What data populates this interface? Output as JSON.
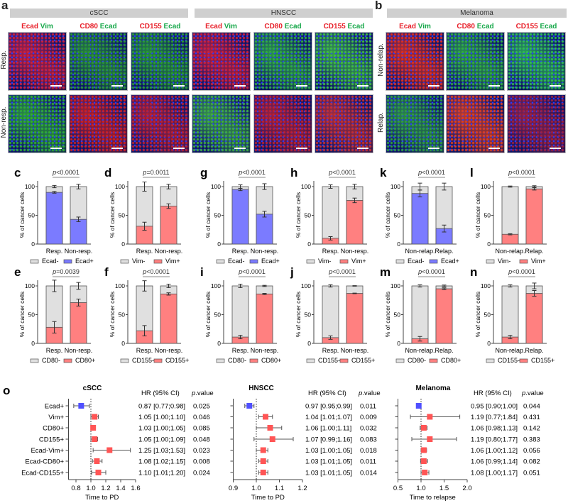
{
  "panel_a": {
    "letter": "a",
    "groups": [
      "cSCC",
      "HNSCC"
    ],
    "row_labels": [
      "Resp.",
      "Non-resp."
    ]
  },
  "panel_b": {
    "letter": "b",
    "group": "Melanoma",
    "row_labels": [
      "Non-relap.",
      "Relap."
    ]
  },
  "stains": [
    {
      "red": "Ecad",
      "green": "Vim"
    },
    {
      "red": "CD80",
      "green": "Ecad"
    },
    {
      "red": "CD155",
      "green": "Ecad"
    }
  ],
  "image_tones": [
    [
      "#d0203a",
      "#2a9a30",
      "#2aa030",
      "#d0203a",
      "#30b040",
      "#40c040",
      "#e03020",
      "#30b040",
      "#30c050"
    ],
    [
      "#30b030",
      "#d02020",
      "#c02030",
      "#40b040",
      "#c02030",
      "#c83030",
      "#30a040",
      "#e04020",
      "#a02040"
    ]
  ],
  "colors": {
    "ecad_pos": "#7b7bff",
    "marker_pos": "#ff8080",
    "neg": "#e0e0e0",
    "hr_low": "#5050ff",
    "hr_high": "#ff5555"
  },
  "p_symbol": "p",
  "y_label": "% of cancer cells",
  "y_ticks": [
    "0",
    "50",
    "100"
  ],
  "chart_data": [
    {
      "type": "bar",
      "stacked": true,
      "letter": "c",
      "p": "<0.0001",
      "categories": [
        "Resp.",
        "Non-resp."
      ],
      "legend": [
        "Ecad-",
        "Ecad+"
      ],
      "pos_color": "#7b7bff",
      "pos": [
        90,
        43
      ],
      "pos_err": [
        1.5,
        4
      ],
      "neg_err": [
        2,
        4
      ],
      "ylim": [
        0,
        100
      ]
    },
    {
      "type": "bar",
      "stacked": true,
      "letter": "d",
      "p": "=0.0011",
      "categories": [
        "Resp.",
        "Non-resp."
      ],
      "legend": [
        "Vim-",
        "Vim+"
      ],
      "pos_color": "#ff8080",
      "pos": [
        31,
        66
      ],
      "pos_err": [
        7,
        4
      ],
      "neg_err": [
        8,
        4
      ],
      "ylim": [
        0,
        100
      ]
    },
    {
      "type": "bar",
      "stacked": true,
      "letter": "g",
      "p": "<0.0001",
      "categories": [
        "Resp.",
        "Non-resp."
      ],
      "legend": [
        "Ecad-",
        "Ecad+"
      ],
      "pos_color": "#7b7bff",
      "pos": [
        95,
        52
      ],
      "pos_err": [
        2,
        5
      ],
      "neg_err": [
        3,
        5
      ],
      "ylim": [
        0,
        100
      ]
    },
    {
      "type": "bar",
      "stacked": true,
      "letter": "h",
      "p": "<0.0001",
      "categories": [
        "Resp.",
        "Non-resp."
      ],
      "legend": [
        "Vim-",
        "Vim+"
      ],
      "pos_color": "#ff8080",
      "pos": [
        10,
        76
      ],
      "pos_err": [
        3,
        4
      ],
      "neg_err": [
        3,
        4
      ],
      "ylim": [
        0,
        100
      ]
    },
    {
      "type": "bar",
      "stacked": true,
      "letter": "k",
      "p": "<0.0001",
      "categories": [
        "Non-relap.",
        "Relap."
      ],
      "legend": [
        "Ecad-",
        "Ecad+"
      ],
      "pos_color": "#7b7bff",
      "pos": [
        88,
        27
      ],
      "pos_err": [
        6,
        6
      ],
      "neg_err": [
        6,
        6
      ],
      "ylim": [
        0,
        100
      ]
    },
    {
      "type": "bar",
      "stacked": true,
      "letter": "l",
      "p": "<0.0001",
      "categories": [
        "Non-relap.",
        "Relap."
      ],
      "legend": [
        "Vim-",
        "Vim+"
      ],
      "pos_color": "#ff8080",
      "pos": [
        17,
        96
      ],
      "pos_err": [
        1,
        2
      ],
      "neg_err": [
        1,
        1.5
      ],
      "ylim": [
        0,
        100
      ]
    },
    {
      "type": "bar",
      "stacked": true,
      "letter": "e",
      "p": "=0.0039",
      "categories": [
        "Resp.",
        "Non-resp."
      ],
      "legend": [
        "CD80-",
        "CD80+"
      ],
      "pos_color": "#ff8080",
      "pos": [
        28,
        71
      ],
      "pos_err": [
        10,
        6
      ],
      "neg_err": [
        10,
        6
      ],
      "ylim": [
        0,
        100
      ]
    },
    {
      "type": "bar",
      "stacked": true,
      "letter": "f",
      "p": "<0.0001",
      "categories": [
        "Resp.",
        "Non-resp."
      ],
      "legend": [
        "CD155-",
        "CD155+"
      ],
      "pos_color": "#ff8080",
      "pos": [
        22,
        86
      ],
      "pos_err": [
        9,
        2
      ],
      "neg_err": [
        9,
        3
      ],
      "ylim": [
        0,
        100
      ]
    },
    {
      "type": "bar",
      "stacked": true,
      "letter": "i",
      "p": "<0.0001",
      "categories": [
        "Resp.",
        "Non-resp."
      ],
      "legend": [
        "CD80-",
        "CD80+"
      ],
      "pos_color": "#ff8080",
      "pos": [
        11,
        86
      ],
      "pos_err": [
        3,
        1
      ],
      "neg_err": [
        3,
        1
      ],
      "ylim": [
        0,
        100
      ]
    },
    {
      "type": "bar",
      "stacked": true,
      "letter": "j",
      "p": "<0.0001",
      "categories": [
        "Resp.",
        "Non-resp."
      ],
      "legend": [
        "CD155-",
        "CD155+"
      ],
      "pos_color": "#ff8080",
      "pos": [
        10,
        87
      ],
      "pos_err": [
        3,
        0.5
      ],
      "neg_err": [
        2,
        0.5
      ],
      "ylim": [
        0,
        100
      ]
    },
    {
      "type": "bar",
      "stacked": true,
      "letter": "m",
      "p": "<0.0001",
      "categories": [
        "Non-relap.",
        "Relap."
      ],
      "legend": [
        "CD80-",
        "CD80+"
      ],
      "pos_color": "#ff8080",
      "pos": [
        8,
        95
      ],
      "pos_err": [
        4,
        1.5
      ],
      "neg_err": [
        2,
        1.5
      ],
      "ylim": [
        0,
        100
      ]
    },
    {
      "type": "bar",
      "stacked": true,
      "letter": "n",
      "p": "<0.0001",
      "categories": [
        "Non-relap.",
        "Relap."
      ],
      "legend": [
        "CD155-",
        "CD155+"
      ],
      "pos_color": "#ff8080",
      "pos": [
        11,
        87
      ],
      "pos_err": [
        3,
        5
      ],
      "neg_err": [
        2,
        5
      ],
      "ylim": [
        0,
        100
      ]
    },
    {
      "type": "forest",
      "title": "cSCC",
      "xlabel": "Time to PD",
      "xlim": [
        0.7,
        1.6
      ],
      "ticks": [
        "0.8",
        "1.0",
        "1.2",
        "1.4",
        "1.6"
      ],
      "hr_header": "HR (95% CI)",
      "p_header": ".value",
      "rows": [
        {
          "label": "Ecad+",
          "hr": 0.87,
          "lo": 0.77,
          "hi": 0.98,
          "text": "0.87 [0.77;0.98]",
          "p": "0.025"
        },
        {
          "label": "Vim+",
          "hr": 1.05,
          "lo": 1.0,
          "hi": 1.1,
          "text": "1.05 [1.00;1.10]",
          "p": "0.046"
        },
        {
          "label": "CD80+",
          "hr": 1.03,
          "lo": 1.0,
          "hi": 1.05,
          "text": "1.03 [1.00;1.05]",
          "p": "0.085"
        },
        {
          "label": "CD155+",
          "hr": 1.05,
          "lo": 1.0,
          "hi": 1.09,
          "text": "1.05 [1.00;1.09]",
          "p": "0.048"
        },
        {
          "label": "Ecad-Vim+",
          "hr": 1.25,
          "lo": 1.03,
          "hi": 1.53,
          "text": "1.25 [1.03;1.53]",
          "p": "0.023"
        },
        {
          "label": "Ecad-CD80+",
          "hr": 1.08,
          "lo": 1.02,
          "hi": 1.15,
          "text": "1.08 [1.02;1.15]",
          "p": "0.008"
        },
        {
          "label": "Ecad-CD155+",
          "hr": 1.1,
          "lo": 1.01,
          "hi": 1.2,
          "text": "1.10 [1.01;1.20]",
          "p": "0.024"
        }
      ]
    },
    {
      "type": "forest",
      "title": "HNSCC",
      "xlabel": "Time to PD",
      "xlim": [
        0.9,
        1.2
      ],
      "ticks": [
        "0.9",
        "1.0",
        "1.1",
        "1.2"
      ],
      "hr_header": "HR (95% CI)",
      "p_header": ".value",
      "rows": [
        {
          "hr": 0.97,
          "lo": 0.95,
          "hi": 0.99,
          "text": "0.97 [0.95;0.99]",
          "p": "0.011"
        },
        {
          "hr": 1.04,
          "lo": 1.01,
          "hi": 1.07,
          "text": "1.04 [1.01;1.07]",
          "p": "0.009"
        },
        {
          "hr": 1.06,
          "lo": 1.0,
          "hi": 1.11,
          "text": "1.06 [1.00;1.11]",
          "p": "0.032"
        },
        {
          "hr": 1.07,
          "lo": 0.99,
          "hi": 1.16,
          "text": "1.07 [0.99;1.16]",
          "p": "0.083"
        },
        {
          "hr": 1.03,
          "lo": 1.0,
          "hi": 1.05,
          "text": "1.03 [1.00;1.05]",
          "p": "0.018"
        },
        {
          "hr": 1.03,
          "lo": 1.01,
          "hi": 1.05,
          "text": "1.03 [1.01;1.05]",
          "p": "0.011"
        },
        {
          "hr": 1.03,
          "lo": 1.01,
          "hi": 1.05,
          "text": "1.03 [1.01;1.05]",
          "p": "0.014"
        }
      ]
    },
    {
      "type": "forest",
      "title": "Melanoma",
      "xlabel": "Time to relapse",
      "xlim": [
        0.5,
        2.0
      ],
      "ticks": [
        "0.5",
        "1.0",
        "1.5",
        "2.0"
      ],
      "hr_header": "HR (95% CI)",
      "p_header": ".value",
      "rows": [
        {
          "hr": 0.95,
          "lo": 0.9,
          "hi": 1.0,
          "text": "0.95 [0.90;1.00]",
          "p": "0.044"
        },
        {
          "hr": 1.19,
          "lo": 0.77,
          "hi": 1.84,
          "text": "1.19 [0.77;1.84]",
          "p": "0.431"
        },
        {
          "hr": 1.06,
          "lo": 0.98,
          "hi": 1.13,
          "text": "1.06 [0.98;1.13]",
          "p": "0.142"
        },
        {
          "hr": 1.19,
          "lo": 0.8,
          "hi": 1.77,
          "text": "1.19 [0.80;1.77]",
          "p": "0.383"
        },
        {
          "hr": 1.06,
          "lo": 1.0,
          "hi": 1.12,
          "text": "1.06 [1.00;1.12]",
          "p": "0.056"
        },
        {
          "hr": 1.06,
          "lo": 0.99,
          "hi": 1.14,
          "text": "1.06 [0.99;1.14]",
          "p": "0.082"
        },
        {
          "hr": 1.08,
          "lo": 1.0,
          "hi": 1.17,
          "text": "1.08 [1.00;1.17]",
          "p": "0.051"
        }
      ]
    }
  ],
  "panel_o": {
    "letter": "o"
  }
}
